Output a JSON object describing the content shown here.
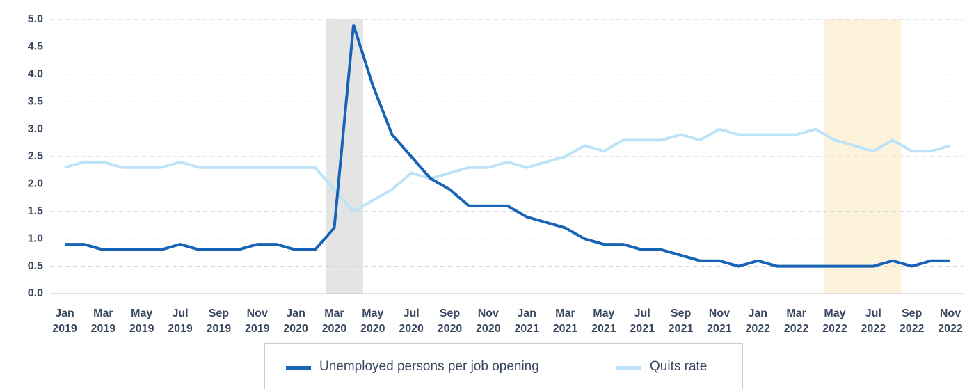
{
  "chart_data": {
    "type": "line",
    "categories": [
      "Jan 2019",
      null,
      "Mar 2019",
      null,
      "May 2019",
      null,
      "Jul 2019",
      null,
      "Sep 2019",
      null,
      "Nov 2019",
      null,
      "Jan 2020",
      null,
      "Mar 2020",
      null,
      "May 2020",
      null,
      "Jul 2020",
      null,
      "Sep 2020",
      null,
      "Nov 2020",
      null,
      "Jan 2021",
      null,
      "Mar 2021",
      null,
      "May 2021",
      null,
      "Jul 2021",
      null,
      "Sep 2021",
      null,
      "Nov 2021",
      null,
      "Jan 2022",
      null,
      "Mar 2022",
      null,
      "May 2022",
      null,
      "Jul 2022",
      null,
      "Sep 2022",
      null,
      "Nov 2022"
    ],
    "series": [
      {
        "name": "Unemployed persons per job opening",
        "color": "#1763b5",
        "values": [
          0.9,
          0.9,
          0.8,
          0.8,
          0.8,
          0.8,
          0.9,
          0.8,
          0.8,
          0.8,
          0.9,
          0.9,
          0.8,
          0.8,
          1.2,
          4.9,
          3.8,
          2.9,
          2.5,
          2.1,
          1.9,
          1.6,
          1.6,
          1.6,
          1.4,
          1.3,
          1.2,
          1.0,
          0.9,
          0.9,
          0.8,
          0.8,
          0.7,
          0.6,
          0.6,
          0.5,
          0.6,
          0.5,
          0.5,
          0.5,
          0.5,
          0.5,
          0.5,
          0.6,
          0.5,
          0.6,
          0.6
        ]
      },
      {
        "name": "Quits rate",
        "color": "#bde3f8",
        "values": [
          2.3,
          2.4,
          2.4,
          2.3,
          2.3,
          2.3,
          2.4,
          2.3,
          2.3,
          2.3,
          2.3,
          2.3,
          2.3,
          2.3,
          1.9,
          1.5,
          1.7,
          1.9,
          2.2,
          2.1,
          2.2,
          2.3,
          2.3,
          2.4,
          2.3,
          2.4,
          2.5,
          2.7,
          2.6,
          2.8,
          2.8,
          2.8,
          2.9,
          2.8,
          3.0,
          2.9,
          2.9,
          2.9,
          2.9,
          3.0,
          2.8,
          2.7,
          2.6,
          2.8,
          2.6,
          2.6,
          2.7
        ]
      }
    ],
    "ylim": [
      0,
      5
    ],
    "yticks": [
      {
        "value": 0,
        "label": "0.0"
      },
      0.5,
      {
        "value": 1,
        "label": "1.0"
      },
      1.5,
      {
        "value": 2,
        "label": "2.0"
      },
      2.5,
      {
        "value": 3,
        "label": "3.0"
      },
      3.5,
      {
        "value": 4,
        "label": "4.0"
      },
      4.5,
      {
        "value": 5,
        "label": "5.0"
      }
    ],
    "grid": true
  }
}
